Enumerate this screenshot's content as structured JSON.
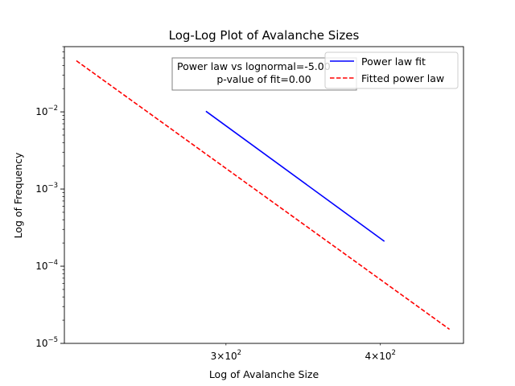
{
  "chart_data": {
    "type": "line",
    "title": "Log-Log Plot of Avalanche Sizes",
    "xlabel": "Log of Avalanche Size",
    "ylabel": "Log of Frequency",
    "xscale": "log",
    "yscale": "log",
    "xlim": [
      222,
      467
    ],
    "ylim": [
      1e-05,
      0.07
    ],
    "x_ticks": [
      {
        "value": 300,
        "mantissa": "3",
        "times": "×",
        "base": "10",
        "exp": "2"
      },
      {
        "value": 400,
        "mantissa": "4",
        "times": "×",
        "base": "10",
        "exp": "2"
      }
    ],
    "y_ticks": [
      {
        "value": 1e-05,
        "base": "10",
        "exp": "−5"
      },
      {
        "value": 0.0001,
        "base": "10",
        "exp": "−4"
      },
      {
        "value": 0.001,
        "base": "10",
        "exp": "−3"
      },
      {
        "value": 0.01,
        "base": "10",
        "exp": "−2"
      }
    ],
    "series": [
      {
        "name": "Power law fit",
        "color": "#0000ff",
        "style": "solid",
        "points": [
          [
            289,
            0.0102
          ],
          [
            403,
            0.00021
          ]
        ]
      },
      {
        "name": "Fitted power law",
        "color": "#ff0000",
        "style": "dashed",
        "points": [
          [
            227,
            0.046
          ],
          [
            455,
            1.52e-05
          ]
        ]
      }
    ],
    "legend_position": "upper-right",
    "annotation": {
      "line1": "Power law vs lognormal=-5.00",
      "line2": "p-value of fit=0.00"
    },
    "grid": false
  }
}
